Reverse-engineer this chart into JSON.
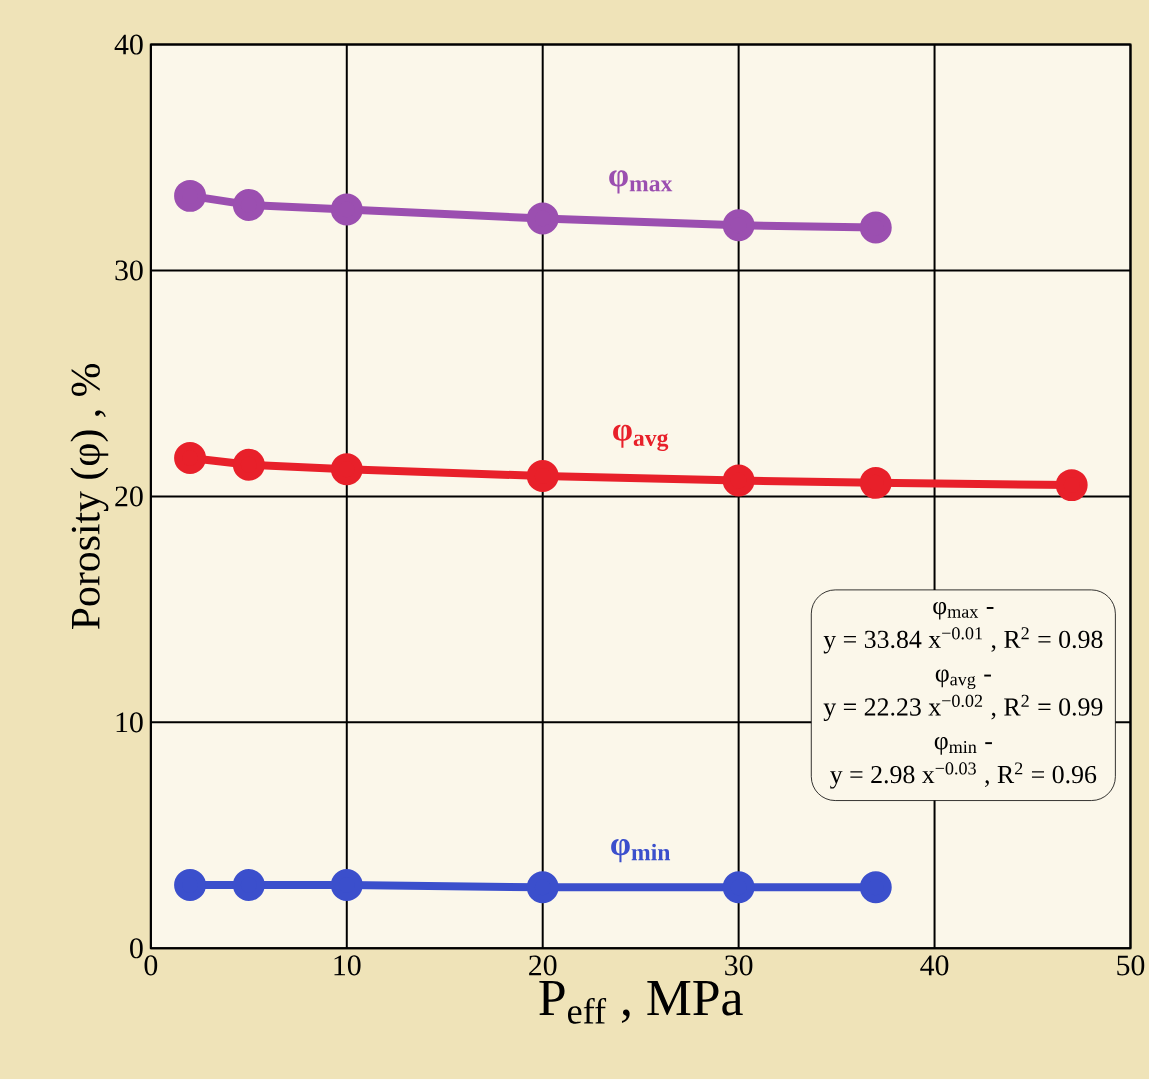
{
  "chart_data": {
    "type": "line",
    "xlabel": "P$_{eff}$ , MPa",
    "ylabel": "Porosity (φ) , %",
    "xlim": [
      0,
      50
    ],
    "ylim": [
      0,
      40
    ],
    "xticks": [
      0,
      10,
      20,
      30,
      40,
      50
    ],
    "yticks": [
      0,
      10,
      20,
      30,
      40
    ],
    "grid": true,
    "marker": "circle",
    "line_style": "solid",
    "series": [
      {
        "name": "φ$_{max}$",
        "color": "#9b4fb0",
        "x": [
          2,
          5,
          10,
          20,
          30,
          37
        ],
        "values": [
          33.3,
          32.9,
          32.7,
          32.3,
          32.0,
          31.9
        ]
      },
      {
        "name": "φ$_{avg}$",
        "color": "#e8202a",
        "x": [
          2,
          5,
          10,
          20,
          30,
          37,
          47
        ],
        "values": [
          21.7,
          21.4,
          21.2,
          20.9,
          20.7,
          20.6,
          20.5
        ]
      },
      {
        "name": "φ$_{min}$",
        "color": "#3b4fcc",
        "x": [
          2,
          5,
          10,
          20,
          30,
          37
        ],
        "values": [
          2.8,
          2.8,
          2.8,
          2.7,
          2.7,
          2.7
        ]
      }
    ],
    "annotations": [
      "φ$_{max}$ -",
      "y = 33.84 x$^{−0.01}$ , R$^{2}$ = 0.98",
      "φ$_{avg}$ -",
      "y = 22.23 x$^{−0.02}$ , R$^{2}$ = 0.99",
      "φ$_{min}$ -",
      "y = 2.98 x$^{−0.03}$ , R$^{2}$ = 0.96"
    ]
  }
}
